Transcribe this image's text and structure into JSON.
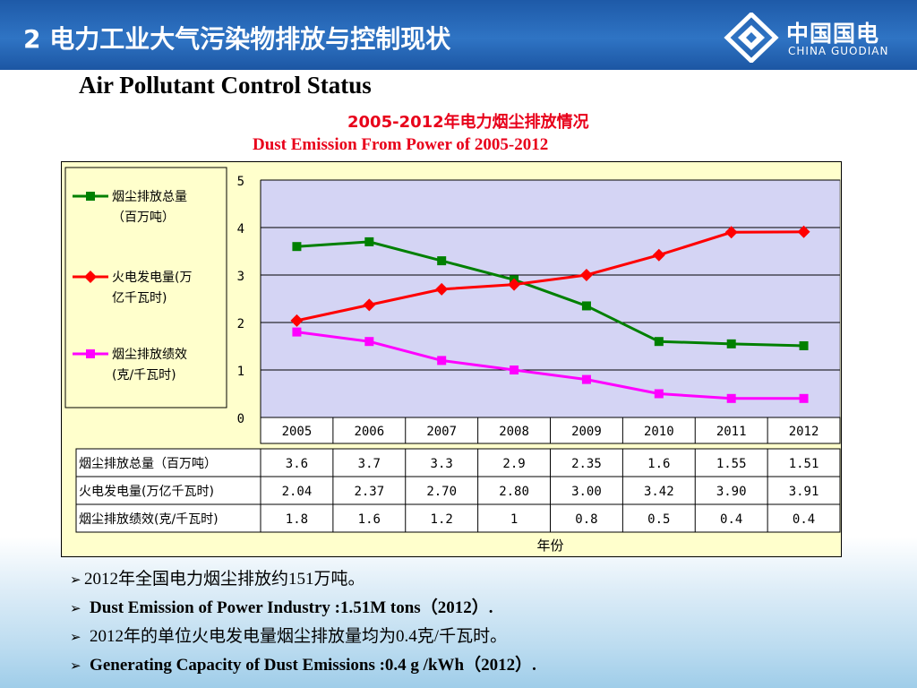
{
  "header": {
    "title": "2 电力工业大气污染物排放与控制现状"
  },
  "logo": {
    "cn": "中国国电",
    "en": "CHINA GUODIAN"
  },
  "subtitle": "Air Pollutant Control Status",
  "chart_title_cn": "2005-2012年电力烟尘排放情况",
  "chart_title_en": "Dust Emission From Power of 2005-2012",
  "chart_data": {
    "type": "line",
    "categories": [
      "2005",
      "2006",
      "2007",
      "2008",
      "2009",
      "2010",
      "2011",
      "2012"
    ],
    "xlabel": "年份",
    "ylim": [
      0,
      5
    ],
    "yticks": [
      "0",
      "1",
      "2",
      "3",
      "4",
      "5"
    ],
    "grid": true,
    "legend_position": "left",
    "series": [
      {
        "name": "烟尘排放总量（百万吨）",
        "legend_line1": "烟尘排放总量",
        "legend_line2": "（百万吨）",
        "color": "#008000",
        "marker": "square",
        "values": [
          3.6,
          3.7,
          3.3,
          2.9,
          2.35,
          1.6,
          1.55,
          1.51
        ],
        "labels": [
          "3.6",
          "3.7",
          "3.3",
          "2.9",
          "2.35",
          "1.6",
          "1.55",
          "1.51"
        ]
      },
      {
        "name": "火电发电量(万亿千瓦时)",
        "legend_line1": "火电发电量(万",
        "legend_line2": "亿千瓦时)",
        "color": "#ff0000",
        "marker": "diamond",
        "values": [
          2.04,
          2.37,
          2.7,
          2.8,
          3.0,
          3.42,
          3.9,
          3.91
        ],
        "labels": [
          "2.04",
          "2.37",
          "2.70",
          "2.80",
          "3.00",
          "3.42",
          "3.90",
          "3.91"
        ]
      },
      {
        "name": "烟尘排放绩效(克/千瓦时)",
        "legend_line1": "烟尘排放绩效",
        "legend_line2": "(克/千瓦时)",
        "color": "#ff00ff",
        "marker": "square",
        "values": [
          1.8,
          1.6,
          1.2,
          1.0,
          0.8,
          0.5,
          0.4,
          0.4
        ],
        "labels": [
          "1.8",
          "1.6",
          "1.2",
          "1",
          "0.8",
          "0.5",
          "0.4",
          "0.4"
        ]
      }
    ]
  },
  "bullets": [
    {
      "text": "2012年全国电力烟尘排放约151万吨。",
      "style": "cn"
    },
    {
      "text": "Dust Emission of Power Industry :1.51M tons（2012）.",
      "style": "en"
    },
    {
      "text": "2012年的单位火电发电量烟尘排放量均为0.4克/千瓦时。",
      "style": "cn"
    },
    {
      "text": "Generating Capacity of  Dust Emissions :0.4 g /kWh（2012）.",
      "style": "en"
    }
  ]
}
